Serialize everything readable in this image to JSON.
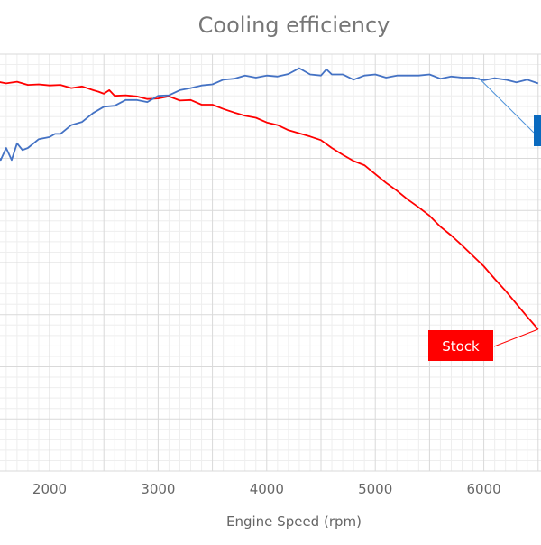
{
  "chart_data": {
    "type": "line",
    "title": "Cooling efficiency",
    "xlabel": "Engine Speed (rpm)",
    "ylabel": "",
    "xlim": [
      1500,
      6500
    ],
    "x_ticks": [
      2000,
      3000,
      4000,
      5000,
      6000
    ],
    "grid": true,
    "series": [
      {
        "name": "Stock",
        "color": "#ff0000",
        "callout": "Stock",
        "callout_color": "#ff0000",
        "points": [
          [
            1500,
            92.3
          ],
          [
            1600,
            91.9
          ],
          [
            1700,
            92.2
          ],
          [
            1800,
            91.6
          ],
          [
            1900,
            91.7
          ],
          [
            2000,
            91.5
          ],
          [
            2100,
            91.6
          ],
          [
            2200,
            91.0
          ],
          [
            2300,
            91.3
          ],
          [
            2400,
            90.6
          ],
          [
            2450,
            90.3
          ],
          [
            2500,
            89.9
          ],
          [
            2550,
            90.6
          ],
          [
            2600,
            89.5
          ],
          [
            2700,
            89.6
          ],
          [
            2800,
            89.4
          ],
          [
            2900,
            88.9
          ],
          [
            3000,
            89.0
          ],
          [
            3100,
            89.4
          ],
          [
            3200,
            88.6
          ],
          [
            3300,
            88.7
          ],
          [
            3400,
            87.8
          ],
          [
            3500,
            87.8
          ],
          [
            3600,
            87.0
          ],
          [
            3700,
            86.3
          ],
          [
            3800,
            85.7
          ],
          [
            3900,
            85.3
          ],
          [
            4000,
            84.4
          ],
          [
            4100,
            83.9
          ],
          [
            4200,
            82.9
          ],
          [
            4300,
            82.3
          ],
          [
            4400,
            81.7
          ],
          [
            4500,
            81.0
          ],
          [
            4600,
            79.5
          ],
          [
            4700,
            78.2
          ],
          [
            4800,
            77.0
          ],
          [
            4900,
            76.2
          ],
          [
            5000,
            74.5
          ],
          [
            5100,
            72.8
          ],
          [
            5200,
            71.3
          ],
          [
            5300,
            69.6
          ],
          [
            5400,
            68.1
          ],
          [
            5500,
            66.5
          ],
          [
            5600,
            64.4
          ],
          [
            5700,
            62.7
          ],
          [
            5800,
            60.8
          ],
          [
            5900,
            58.8
          ],
          [
            6000,
            56.8
          ],
          [
            6100,
            54.4
          ],
          [
            6200,
            52.1
          ],
          [
            6300,
            49.6
          ],
          [
            6400,
            47.1
          ],
          [
            6500,
            44.7
          ]
        ]
      },
      {
        "name": "",
        "color": "#4472c4",
        "callout": "",
        "callout_color": "#0a6abf",
        "points": [
          [
            1500,
            78.6
          ],
          [
            1550,
            77.2
          ],
          [
            1600,
            79.5
          ],
          [
            1650,
            77.2
          ],
          [
            1700,
            80.4
          ],
          [
            1750,
            79.1
          ],
          [
            1800,
            79.5
          ],
          [
            1900,
            81.2
          ],
          [
            2000,
            81.6
          ],
          [
            2050,
            82.2
          ],
          [
            2100,
            82.2
          ],
          [
            2200,
            83.9
          ],
          [
            2300,
            84.5
          ],
          [
            2400,
            86.2
          ],
          [
            2500,
            87.4
          ],
          [
            2600,
            87.6
          ],
          [
            2700,
            88.7
          ],
          [
            2800,
            88.7
          ],
          [
            2900,
            88.3
          ],
          [
            3000,
            89.5
          ],
          [
            3100,
            89.6
          ],
          [
            3200,
            90.6
          ],
          [
            3300,
            91.0
          ],
          [
            3400,
            91.5
          ],
          [
            3500,
            91.7
          ],
          [
            3600,
            92.6
          ],
          [
            3700,
            92.8
          ],
          [
            3800,
            93.4
          ],
          [
            3900,
            93.0
          ],
          [
            4000,
            93.4
          ],
          [
            4100,
            93.2
          ],
          [
            4200,
            93.7
          ],
          [
            4300,
            94.8
          ],
          [
            4400,
            93.6
          ],
          [
            4500,
            93.4
          ],
          [
            4550,
            94.6
          ],
          [
            4600,
            93.6
          ],
          [
            4700,
            93.6
          ],
          [
            4800,
            92.6
          ],
          [
            4900,
            93.4
          ],
          [
            5000,
            93.6
          ],
          [
            5100,
            93.0
          ],
          [
            5200,
            93.4
          ],
          [
            5300,
            93.4
          ],
          [
            5400,
            93.4
          ],
          [
            5500,
            93.6
          ],
          [
            5600,
            92.8
          ],
          [
            5700,
            93.2
          ],
          [
            5800,
            93.0
          ],
          [
            5900,
            93.0
          ],
          [
            6000,
            92.5
          ],
          [
            6100,
            92.9
          ],
          [
            6200,
            92.6
          ],
          [
            6300,
            92.1
          ],
          [
            6400,
            92.6
          ],
          [
            6500,
            91.9
          ]
        ]
      }
    ]
  }
}
